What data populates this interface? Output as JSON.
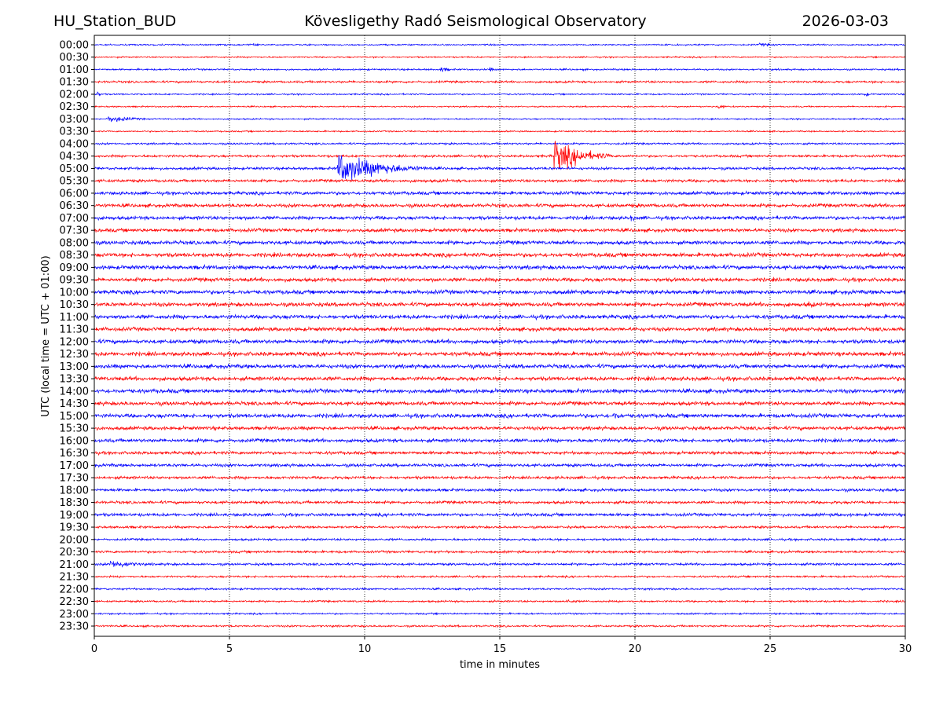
{
  "header": {
    "station": "HU_Station_BUD",
    "title": "Kövesligethy Radó Seismological Observatory",
    "date": "2026-03-03"
  },
  "chart_data": {
    "type": "line",
    "subtype": "helicorder",
    "xlabel": "time in minutes",
    "ylabel": "UTC (local time = UTC + 01:00)",
    "xlim": [
      0,
      30
    ],
    "xticks": [
      "0",
      "5",
      "10",
      "15",
      "20",
      "25",
      "30"
    ],
    "grid": "vertical dotted at each x tick",
    "colors": [
      "#0000ff",
      "#ff0000"
    ],
    "rows": [
      "00:00",
      "00:30",
      "01:00",
      "01:30",
      "02:00",
      "02:30",
      "03:00",
      "03:30",
      "04:00",
      "04:30",
      "05:00",
      "05:30",
      "06:00",
      "06:30",
      "07:00",
      "07:30",
      "08:00",
      "08:30",
      "09:00",
      "09:30",
      "10:00",
      "10:30",
      "11:00",
      "11:30",
      "12:00",
      "12:30",
      "13:00",
      "13:30",
      "14:00",
      "14:30",
      "15:00",
      "15:30",
      "16:00",
      "16:30",
      "17:00",
      "17:30",
      "18:00",
      "18:30",
      "19:00",
      "19:30",
      "20:00",
      "20:30",
      "21:00",
      "21:30",
      "22:00",
      "22:30",
      "23:00",
      "23:30"
    ],
    "noise_level": [
      0.12,
      0.12,
      0.14,
      0.18,
      0.12,
      0.12,
      0.12,
      0.12,
      0.16,
      0.2,
      0.22,
      0.24,
      0.28,
      0.3,
      0.3,
      0.3,
      0.32,
      0.34,
      0.34,
      0.32,
      0.34,
      0.34,
      0.34,
      0.32,
      0.34,
      0.34,
      0.34,
      0.34,
      0.34,
      0.32,
      0.34,
      0.3,
      0.3,
      0.26,
      0.26,
      0.24,
      0.24,
      0.24,
      0.26,
      0.2,
      0.18,
      0.2,
      0.2,
      0.16,
      0.16,
      0.16,
      0.14,
      0.16
    ],
    "events": [
      {
        "row": "00:00",
        "start": 5.8,
        "duration": 0.8,
        "amp": 0.3
      },
      {
        "row": "00:00",
        "start": 24.6,
        "duration": 1.6,
        "amp": 0.3
      },
      {
        "row": "01:00",
        "start": 12.8,
        "duration": 0.9,
        "amp": 0.5
      },
      {
        "row": "01:00",
        "start": 14.6,
        "duration": 0.5,
        "amp": 0.45
      },
      {
        "row": "02:00",
        "start": 0.1,
        "duration": 0.3,
        "amp": 0.6
      },
      {
        "row": "02:00",
        "start": 28.5,
        "duration": 0.3,
        "amp": 0.6
      },
      {
        "row": "02:30",
        "start": 23.1,
        "duration": 0.4,
        "amp": 0.6
      },
      {
        "row": "03:00",
        "start": 0.5,
        "duration": 1.8,
        "amp": 0.7
      },
      {
        "row": "04:30",
        "start": 17.0,
        "duration": 2.2,
        "amp": 3.0
      },
      {
        "row": "05:00",
        "start": 9.0,
        "duration": 3.5,
        "amp": 2.8
      },
      {
        "row": "07:00",
        "start": 19.8,
        "duration": 1.0,
        "amp": 0.6
      },
      {
        "row": "10:30",
        "start": 26.4,
        "duration": 0.9,
        "amp": 0.7
      },
      {
        "row": "11:00",
        "start": 20.3,
        "duration": 1.2,
        "amp": 0.6
      },
      {
        "row": "15:00",
        "start": 4.3,
        "duration": 0.6,
        "amp": 0.7
      },
      {
        "row": "15:00",
        "start": 19.2,
        "duration": 1.0,
        "amp": 0.8
      },
      {
        "row": "18:30",
        "start": 8.9,
        "duration": 0.6,
        "amp": 0.5
      },
      {
        "row": "21:00",
        "start": 0.6,
        "duration": 2.2,
        "amp": 0.8
      },
      {
        "row": "22:30",
        "start": 17.4,
        "duration": 0.9,
        "amp": 0.5
      }
    ]
  }
}
